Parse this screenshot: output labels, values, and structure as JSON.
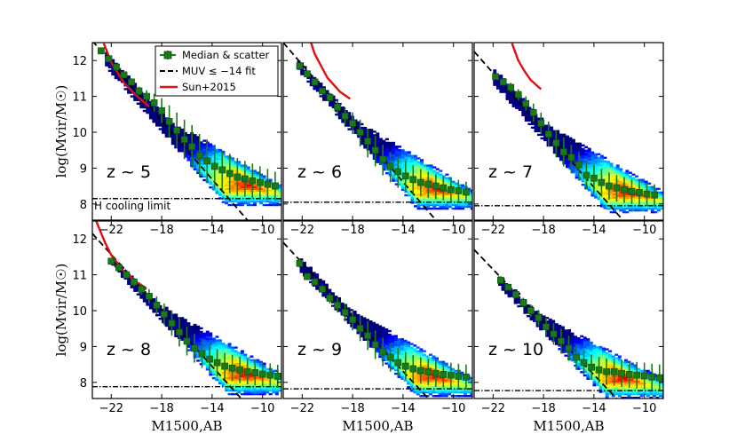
{
  "chart_data": {
    "type": "scatter",
    "x_axis_label": "M1500,AB",
    "y_axis_label": "log(Mvir/M☉)",
    "xlim": [
      -23.5,
      -8.5
    ],
    "ylim": [
      7.55,
      12.5
    ],
    "x_ticks": [
      "−22",
      "−18",
      "−14",
      "−10"
    ],
    "x_tick_values": [
      -22,
      -18,
      -14,
      -10
    ],
    "y_ticks": [
      "12",
      "11",
      "10",
      "9",
      "8"
    ],
    "y_tick_values": [
      12,
      11,
      10,
      9,
      8
    ],
    "legend": {
      "placement": "top-left of first panel",
      "entries": [
        {
          "label": "Median & scatter",
          "marker": "square",
          "color": "#1a7a1a"
        },
        {
          "label": "MUV ≤ −14 fit",
          "style": "dashed",
          "color": "#000000"
        },
        {
          "label": "Sun+2015",
          "style": "solid",
          "color": "#e01010"
        }
      ]
    },
    "annotation": "H cooling limit",
    "colors": {
      "median": "#1a7a1a",
      "fit": "#000000",
      "sun2015": "#e01010",
      "cooling": "#000000"
    },
    "panels": [
      {
        "label": "z ~ 5",
        "cooling_limit": 8.15,
        "fit": {
          "x": [
            -23.5,
            -11.2
          ],
          "y": [
            12.55,
            7.55
          ]
        },
        "sun2015": {
          "x": [
            -22.6,
            -22,
            -21,
            -20,
            -19
          ],
          "y": [
            12.48,
            11.95,
            11.38,
            11.02,
            10.72
          ]
        },
        "median": {
          "x": [
            -22.8,
            -22.2,
            -21.6,
            -21,
            -20.4,
            -19.8,
            -19.2,
            -18.6,
            -18,
            -17.4,
            -16.8,
            -16.2,
            -15.6,
            -15,
            -14.4,
            -13.8,
            -13.2,
            -12.6,
            -12,
            -11.4,
            -10.8,
            -10.2,
            -9.6,
            -9
          ],
          "y": [
            12.27,
            12.05,
            11.82,
            11.6,
            11.4,
            11.15,
            11.0,
            10.82,
            10.6,
            10.3,
            10.05,
            9.8,
            9.6,
            9.35,
            9.2,
            9.05,
            8.95,
            8.85,
            8.75,
            8.7,
            8.65,
            8.6,
            8.55,
            8.5
          ],
          "lo": [
            12.22,
            12.0,
            11.76,
            11.52,
            11.3,
            11.03,
            10.83,
            10.57,
            10.25,
            9.85,
            9.55,
            9.25,
            9.0,
            8.75,
            8.6,
            8.45,
            8.38,
            8.3,
            8.23,
            8.2,
            8.17,
            8.15,
            8.12,
            8.1
          ],
          "hi": [
            12.32,
            12.1,
            11.88,
            11.68,
            11.5,
            11.27,
            11.17,
            11.07,
            10.95,
            10.75,
            10.55,
            10.35,
            10.2,
            9.95,
            9.8,
            9.65,
            9.5,
            9.4,
            9.28,
            9.2,
            9.13,
            9.05,
            8.98,
            8.9
          ]
        },
        "cloud": {
          "ridge_start": [
            -22.5,
            12.2
          ],
          "ridge_bend": [
            -17.5,
            10.3
          ],
          "ridge_end": [
            -8.5,
            8.5
          ],
          "core": [
            -10.7,
            8.5
          ],
          "floor": 7.95
        }
      },
      {
        "label": "z ~ 6",
        "cooling_limit": 8.05,
        "fit": {
          "x": [
            -23.5,
            -11.4
          ],
          "y": [
            12.5,
            7.55
          ]
        },
        "sun2015": {
          "x": [
            -21.3,
            -21,
            -20,
            -19,
            -18.2
          ],
          "y": [
            12.5,
            12.18,
            11.52,
            11.13,
            10.93
          ]
        },
        "median": {
          "x": [
            -22.2,
            -21.6,
            -21,
            -20.4,
            -19.8,
            -19.2,
            -18.6,
            -18,
            -17.4,
            -16.8,
            -16.2,
            -15.6,
            -15,
            -14.4,
            -13.8,
            -13.2,
            -12.6,
            -12,
            -11.4,
            -10.8,
            -10.2,
            -9.6,
            -9
          ],
          "y": [
            11.85,
            11.63,
            11.4,
            11.15,
            10.97,
            10.7,
            10.45,
            10.25,
            10.0,
            9.75,
            9.5,
            9.25,
            9.05,
            8.9,
            8.78,
            8.68,
            8.6,
            8.55,
            8.5,
            8.45,
            8.4,
            8.37,
            8.33
          ],
          "lo": [
            11.78,
            11.55,
            11.3,
            11.05,
            10.85,
            10.5,
            10.2,
            9.95,
            9.6,
            9.3,
            9.05,
            8.8,
            8.6,
            8.45,
            8.35,
            8.27,
            8.22,
            8.17,
            8.13,
            8.1,
            8.07,
            8.05,
            8.02
          ],
          "hi": [
            11.92,
            11.71,
            11.5,
            11.25,
            11.1,
            10.9,
            10.7,
            10.55,
            10.35,
            10.1,
            9.9,
            9.65,
            9.45,
            9.3,
            9.2,
            9.08,
            8.97,
            8.9,
            8.83,
            8.77,
            8.72,
            8.67,
            8.62
          ]
        },
        "cloud": {
          "ridge_start": [
            -22.4,
            12.0
          ],
          "ridge_bend": [
            -17.8,
            10.3
          ],
          "ridge_end": [
            -8.5,
            8.35
          ],
          "core": [
            -10.6,
            8.4
          ],
          "floor": 7.85
        }
      },
      {
        "label": "z ~ 7",
        "cooling_limit": 7.95,
        "fit": {
          "x": [
            -23.5,
            -11.7
          ],
          "y": [
            12.25,
            7.55
          ]
        },
        "sun2015": {
          "x": [
            -20.5,
            -20,
            -19.5,
            -19,
            -18.2
          ],
          "y": [
            12.48,
            12.0,
            11.7,
            11.45,
            11.2
          ]
        },
        "median": {
          "x": [
            -21.8,
            -21.2,
            -20.6,
            -20,
            -19.4,
            -18.8,
            -18.2,
            -17.6,
            -17,
            -16.4,
            -15.8,
            -15.2,
            -14.6,
            -14,
            -13.4,
            -12.8,
            -12.2,
            -11.6,
            -11,
            -10.4,
            -9.8,
            -9.2
          ],
          "y": [
            11.55,
            11.4,
            11.25,
            11.05,
            10.8,
            10.55,
            10.25,
            9.95,
            9.7,
            9.45,
            9.3,
            9.1,
            8.8,
            8.72,
            8.6,
            8.5,
            8.45,
            8.4,
            8.35,
            8.32,
            8.28,
            8.25
          ],
          "lo": [
            11.48,
            11.3,
            11.12,
            10.9,
            10.6,
            10.3,
            9.95,
            9.6,
            9.3,
            9.05,
            8.85,
            8.65,
            8.4,
            8.3,
            8.2,
            8.12,
            8.07,
            8.03,
            8.0,
            7.98,
            7.95,
            7.93
          ],
          "hi": [
            11.62,
            11.5,
            11.38,
            11.2,
            11.0,
            10.8,
            10.55,
            10.3,
            10.05,
            9.85,
            9.65,
            9.45,
            9.2,
            9.1,
            8.98,
            8.88,
            8.8,
            8.75,
            8.7,
            8.65,
            8.6,
            8.55
          ]
        },
        "cloud": {
          "ridge_start": [
            -22.0,
            11.75
          ],
          "ridge_bend": [
            -17.8,
            10.2
          ],
          "ridge_end": [
            -8.5,
            8.3
          ],
          "core": [
            -10.8,
            8.3
          ],
          "floor": 7.75
        }
      },
      {
        "label": "z ~ 8",
        "cooling_limit": 7.88,
        "fit": {
          "x": [
            -23.5,
            -11.7
          ],
          "y": [
            12.15,
            7.55
          ]
        },
        "sun2015": {
          "x": [
            -23.2,
            -22.5,
            -22,
            -21,
            -20,
            -19.2
          ],
          "y": [
            12.5,
            11.9,
            11.55,
            11.1,
            10.8,
            10.62
          ]
        },
        "median": {
          "x": [
            -22.0,
            -21.4,
            -20.8,
            -20.2,
            -19.6,
            -19,
            -18.4,
            -17.8,
            -17.2,
            -16.6,
            -16,
            -15.4,
            -14.8,
            -14.2,
            -13.6,
            -13,
            -12.4,
            -11.8,
            -11.2,
            -10.6,
            -10,
            -9.4,
            -8.8
          ],
          "y": [
            11.38,
            11.2,
            11.0,
            10.8,
            10.6,
            10.4,
            10.15,
            9.9,
            9.65,
            9.4,
            9.15,
            8.95,
            8.8,
            8.65,
            8.55,
            8.45,
            8.4,
            8.35,
            8.3,
            8.27,
            8.23,
            8.2,
            8.17
          ],
          "lo": [
            11.32,
            11.12,
            10.9,
            10.68,
            10.45,
            10.2,
            9.9,
            9.6,
            9.3,
            9.0,
            8.75,
            8.55,
            8.4,
            8.27,
            8.17,
            8.08,
            8.03,
            7.98,
            7.94,
            7.91,
            7.89,
            7.87,
            7.85
          ],
          "hi": [
            11.44,
            11.28,
            11.1,
            10.92,
            10.75,
            10.6,
            10.4,
            10.2,
            10.0,
            9.8,
            9.55,
            9.35,
            9.2,
            9.05,
            8.93,
            8.82,
            8.77,
            8.72,
            8.66,
            8.62,
            8.57,
            8.53,
            8.49
          ]
        },
        "cloud": {
          "ridge_start": [
            -22.0,
            11.45
          ],
          "ridge_bend": [
            -18.2,
            10.15
          ],
          "ridge_end": [
            -8.5,
            8.2
          ],
          "core": [
            -10.9,
            8.15
          ],
          "floor": 7.65
        }
      },
      {
        "label": "z ~ 9",
        "cooling_limit": 7.82,
        "fit": {
          "x": [
            -23.5,
            -12.0
          ],
          "y": [
            11.9,
            7.55
          ]
        },
        "sun2015": {
          "x": [],
          "y": []
        },
        "median": {
          "x": [
            -22.2,
            -21.6,
            -21,
            -20.4,
            -19.8,
            -19.2,
            -18.6,
            -18,
            -17.4,
            -16.8,
            -16.2,
            -15.6,
            -15,
            -14.4,
            -13.8,
            -13.2,
            -12.6,
            -12,
            -11.4,
            -10.8,
            -10.2,
            -9.6,
            -9
          ],
          "y": [
            11.32,
            10.95,
            10.8,
            10.6,
            10.35,
            10.15,
            9.95,
            9.75,
            9.5,
            9.3,
            9.05,
            8.85,
            8.7,
            8.55,
            8.45,
            8.38,
            8.33,
            8.3,
            8.25,
            8.22,
            8.2,
            8.17,
            8.15
          ],
          "lo": [
            11.2,
            10.87,
            10.7,
            10.48,
            10.2,
            9.95,
            9.7,
            9.45,
            9.15,
            8.9,
            8.65,
            8.45,
            8.3,
            8.18,
            8.08,
            8.0,
            7.96,
            7.92,
            7.88,
            7.86,
            7.84,
            7.82,
            7.8
          ],
          "hi": [
            11.44,
            11.03,
            10.9,
            10.72,
            10.5,
            10.35,
            10.2,
            10.05,
            9.85,
            9.7,
            9.45,
            9.25,
            9.1,
            8.95,
            8.85,
            8.76,
            8.7,
            8.66,
            8.62,
            8.58,
            8.55,
            8.52,
            8.5
          ]
        },
        "cloud": {
          "ridge_start": [
            -22.2,
            11.45
          ],
          "ridge_bend": [
            -18.2,
            10.0
          ],
          "ridge_end": [
            -8.5,
            8.1
          ],
          "core": [
            -11.0,
            8.1
          ],
          "floor": 7.6
        }
      },
      {
        "label": "z ~ 10",
        "cooling_limit": 7.77,
        "fit": {
          "x": [
            -23.5,
            -12.2
          ],
          "y": [
            11.7,
            7.55
          ]
        },
        "sun2015": {
          "x": [],
          "y": []
        },
        "median": {
          "x": [
            -21.4,
            -20.8,
            -20.2,
            -19.6,
            -19,
            -18.4,
            -17.8,
            -17.2,
            -16.6,
            -16,
            -15.4,
            -14.8,
            -14.2,
            -13.6,
            -13,
            -12.4,
            -11.8,
            -11.2,
            -10.6,
            -10,
            -9.4,
            -8.8
          ],
          "y": [
            10.85,
            10.65,
            10.45,
            10.22,
            10.0,
            9.8,
            9.55,
            9.35,
            9.15,
            8.95,
            8.7,
            8.55,
            8.42,
            8.35,
            8.3,
            8.3,
            8.25,
            8.22,
            8.2,
            8.18,
            8.15,
            8.13
          ],
          "lo": [
            10.78,
            10.56,
            10.34,
            10.08,
            9.83,
            9.58,
            9.3,
            9.05,
            8.8,
            8.6,
            8.35,
            8.2,
            8.07,
            7.99,
            7.93,
            7.91,
            7.87,
            7.85,
            7.83,
            7.81,
            7.79,
            7.78
          ],
          "hi": [
            10.92,
            10.74,
            10.56,
            10.36,
            10.17,
            10.02,
            9.8,
            9.65,
            9.5,
            9.3,
            9.05,
            8.9,
            8.77,
            8.71,
            8.67,
            8.66,
            8.63,
            8.6,
            8.57,
            8.55,
            8.52,
            8.5
          ]
        },
        "cloud": {
          "ridge_start": [
            -21.6,
            10.95
          ],
          "ridge_bend": [
            -18.2,
            9.85
          ],
          "ridge_end": [
            -8.5,
            8.05
          ],
          "core": [
            -11.2,
            8.05
          ],
          "floor": 7.55
        }
      }
    ]
  }
}
